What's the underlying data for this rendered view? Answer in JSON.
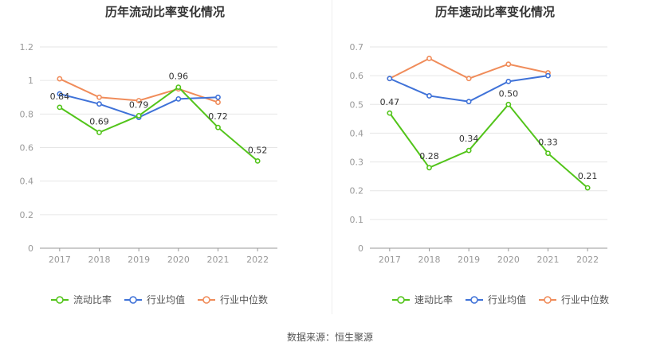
{
  "colors": {
    "primary": "#52c41a",
    "avg": "#3f72d8",
    "median": "#f08c5a"
  },
  "source": "数据来源：恒生聚源",
  "chart_data": [
    {
      "type": "line",
      "title": "历年流动比率变化情况",
      "x": [
        "2017",
        "2018",
        "2019",
        "2020",
        "2021",
        "2022"
      ],
      "ylim": [
        0,
        1.2
      ],
      "yticks": [
        "0",
        "0.2",
        "0.4",
        "0.6",
        "0.8",
        "1",
        "1.2"
      ],
      "grid": true,
      "legend_position": "bottom",
      "series": [
        {
          "name": "流动比率",
          "values": [
            0.84,
            0.69,
            0.79,
            0.96,
            0.72,
            0.52
          ],
          "labels": [
            "0.84",
            "0.69",
            "0.79",
            "0.96",
            "0.72",
            "0.52"
          ]
        },
        {
          "name": "行业均值",
          "values": [
            0.92,
            0.86,
            0.78,
            0.89,
            0.9,
            null
          ]
        },
        {
          "name": "行业中位数",
          "values": [
            1.01,
            0.9,
            0.88,
            0.95,
            0.87,
            null
          ]
        }
      ]
    },
    {
      "type": "line",
      "title": "历年速动比率变化情况",
      "x": [
        "2017",
        "2018",
        "2019",
        "2020",
        "2021",
        "2022"
      ],
      "ylim": [
        0,
        0.7
      ],
      "yticks": [
        "0",
        "0.1",
        "0.2",
        "0.3",
        "0.4",
        "0.5",
        "0.6",
        "0.7"
      ],
      "grid": true,
      "legend_position": "bottom",
      "series": [
        {
          "name": "速动比率",
          "values": [
            0.47,
            0.28,
            0.34,
            0.5,
            0.33,
            0.21
          ],
          "labels": [
            "0.47",
            "0.28",
            "0.34",
            "0.50",
            "0.33",
            "0.21"
          ]
        },
        {
          "name": "行业均值",
          "values": [
            0.59,
            0.53,
            0.51,
            0.58,
            0.6,
            null
          ]
        },
        {
          "name": "行业中位数",
          "values": [
            0.59,
            0.66,
            0.59,
            0.64,
            0.61,
            null
          ]
        }
      ]
    }
  ]
}
